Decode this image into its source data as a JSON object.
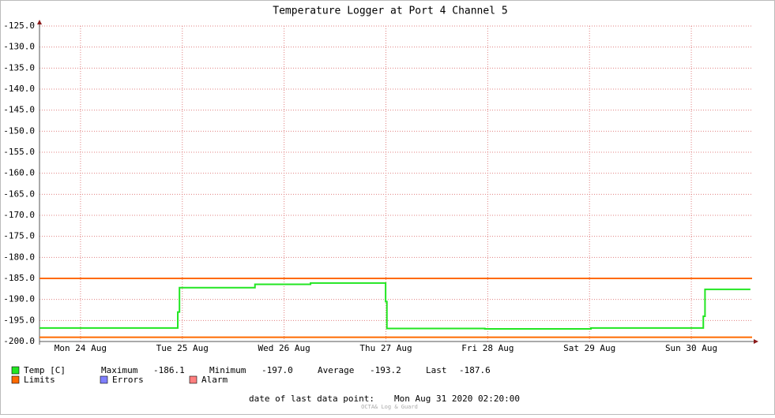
{
  "chart_data": {
    "type": "line",
    "title": "Temperature Logger at Port 4 Channel 5",
    "xlim": [
      0,
      168
    ],
    "xticks": [
      {
        "value": 9.67,
        "label": "Mon 24 Aug"
      },
      {
        "value": 33.67,
        "label": "Tue 25 Aug"
      },
      {
        "value": 57.67,
        "label": "Wed 26 Aug"
      },
      {
        "value": 81.67,
        "label": "Thu 27 Aug"
      },
      {
        "value": 105.67,
        "label": "Fri 28 Aug"
      },
      {
        "value": 129.67,
        "label": "Sat 29 Aug"
      },
      {
        "value": 153.67,
        "label": "Sun 30 Aug"
      }
    ],
    "ylim": [
      -200,
      -125
    ],
    "yticks": [
      {
        "value": -200,
        "label": "-200.0"
      },
      {
        "value": -195,
        "label": "-195.0"
      },
      {
        "value": -190,
        "label": "-190.0"
      },
      {
        "value": -185,
        "label": "-185.0"
      },
      {
        "value": -180,
        "label": "-180.0"
      },
      {
        "value": -175,
        "label": "-175.0"
      },
      {
        "value": -170,
        "label": "-170.0"
      },
      {
        "value": -165,
        "label": "-165.0"
      },
      {
        "value": -160,
        "label": "-160.0"
      },
      {
        "value": -155,
        "label": "-155.0"
      },
      {
        "value": -150,
        "label": "-150.0"
      },
      {
        "value": -145,
        "label": "-145.0"
      },
      {
        "value": -140,
        "label": "-140.0"
      },
      {
        "value": -135,
        "label": "-135.0"
      },
      {
        "value": -130,
        "label": "-130.0"
      },
      {
        "value": -125,
        "label": "-125.0"
      }
    ],
    "grid": true,
    "series": [
      {
        "name": "Temp [C]",
        "color": "#22e622",
        "x": [
          0,
          32.6,
          32.6,
          33.0,
          33.0,
          50.8,
          50.8,
          63.9,
          63.9,
          81.6,
          81.6,
          81.9,
          81.9,
          105,
          105,
          130,
          130,
          156.5,
          156.5,
          156.9,
          156.9,
          167.6
        ],
        "values": [
          -196.8,
          -196.8,
          -193,
          -193,
          -187.2,
          -187.2,
          -186.4,
          -186.4,
          -186.1,
          -186.1,
          -190.5,
          -190.5,
          -196.9,
          -196.9,
          -197.0,
          -197.0,
          -196.8,
          -196.8,
          -194,
          -194,
          -187.6,
          -187.6
        ]
      }
    ],
    "limits": {
      "name": "Limits",
      "color": "#ff6a00",
      "values": [
        -185,
        -199
      ]
    },
    "stats": [
      {
        "name": "Maximum",
        "label": "-186.1"
      },
      {
        "name": "Minimum",
        "label": "-197.0"
      },
      {
        "name": "Average",
        "label": "-193.2"
      },
      {
        "name": "Last",
        "label": "-187.6"
      }
    ],
    "legend_extra": [
      {
        "name": "Errors",
        "color": "#7f7fff"
      },
      {
        "name": "Alarm",
        "color": "#ff7f7f"
      }
    ],
    "last_point_label": "date of last data point:",
    "last_point": "Mon Aug 31 2020 02:20:00",
    "footer": "OCTA& Log & Guard"
  }
}
